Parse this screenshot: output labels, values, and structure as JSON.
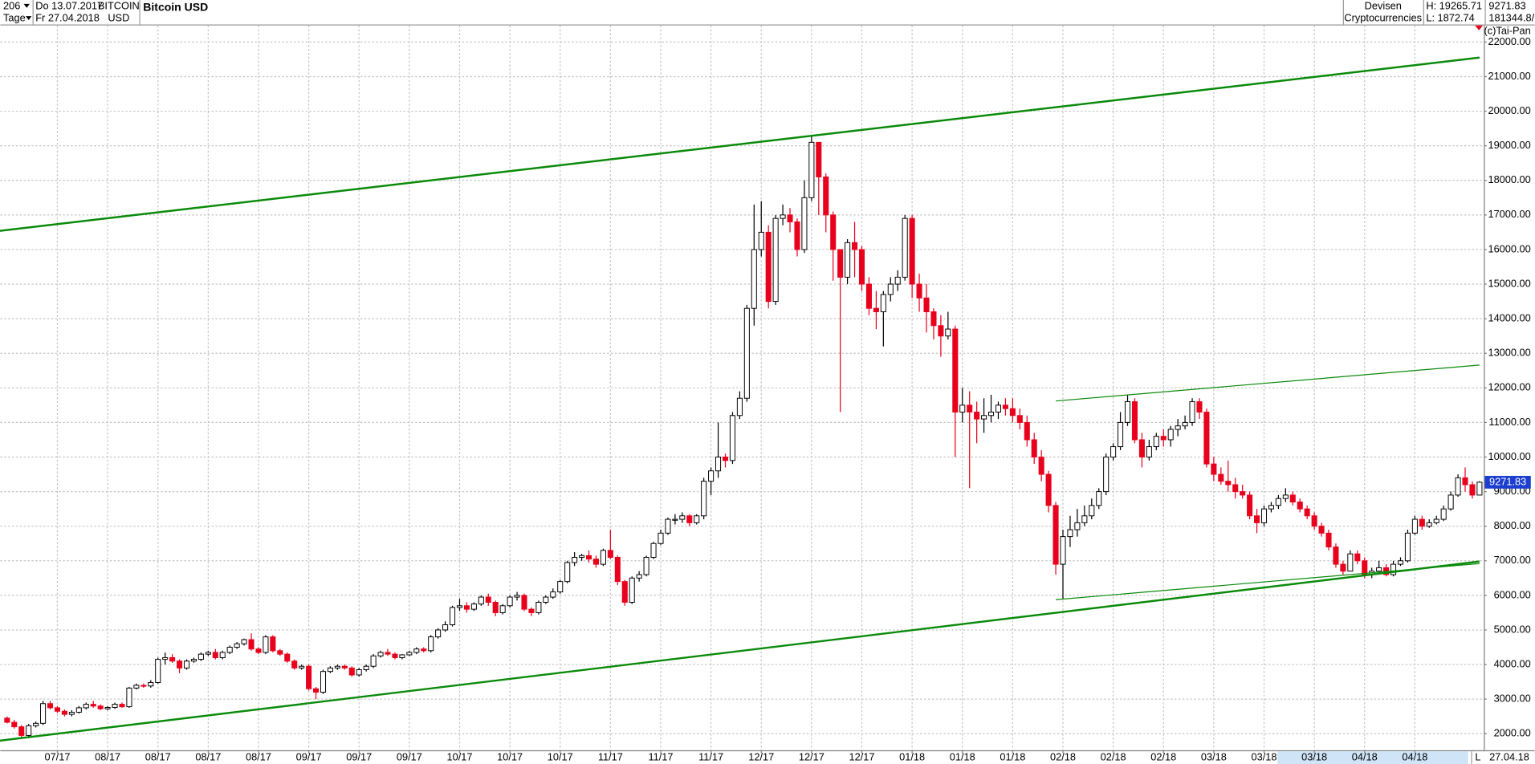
{
  "header": {
    "period": "206",
    "unit": "Tage",
    "from": "Do 13.07.2017",
    "to": "Fr 27.04.2018",
    "symbol": "BITCOIN",
    "currency": "USD",
    "market": "Devisen",
    "group": "Cryptocurrencies",
    "high": "H: 19265.71",
    "low": "L: 1872.74",
    "volume": "181344.8/",
    "copyright": "(c)Tai-Pan",
    "footer_flag": "L",
    "footer_date": "27.04.18"
  },
  "chart_data": {
    "type": "candlestick",
    "title": "Bitcoin USD",
    "up_color": "#ffffff",
    "down_color": "#e8001c",
    "last_color": "#1c3fd0",
    "grid": true,
    "xlim": [
      -0.95,
      205.6
    ],
    "ylim": [
      1520,
      22480
    ],
    "xticks": [
      {
        "value": 7,
        "label": "07/17"
      },
      {
        "value": 14,
        "label": "08/17"
      },
      {
        "value": 21,
        "label": "08/17"
      },
      {
        "value": 28,
        "label": "08/17"
      },
      {
        "value": 35,
        "label": "08/17"
      },
      {
        "value": 42,
        "label": "09/17"
      },
      {
        "value": 49,
        "label": "09/17"
      },
      {
        "value": 56,
        "label": "09/17"
      },
      {
        "value": 63,
        "label": "10/17"
      },
      {
        "value": 70,
        "label": "10/17"
      },
      {
        "value": 77,
        "label": "10/17"
      },
      {
        "value": 84,
        "label": "11/17"
      },
      {
        "value": 91,
        "label": "11/17"
      },
      {
        "value": 98,
        "label": "11/17"
      },
      {
        "value": 105,
        "label": "12/17"
      },
      {
        "value": 112,
        "label": "12/17"
      },
      {
        "value": 119,
        "label": "12/17"
      },
      {
        "value": 126,
        "label": "01/18"
      },
      {
        "value": 133,
        "label": "01/18"
      },
      {
        "value": 140,
        "label": "01/18"
      },
      {
        "value": 147,
        "label": "02/18"
      },
      {
        "value": 154,
        "label": "02/18"
      },
      {
        "value": 161,
        "label": "02/18"
      },
      {
        "value": 168,
        "label": "03/18"
      },
      {
        "value": 175,
        "label": "03/18"
      },
      {
        "value": 182,
        "label": "03/18"
      },
      {
        "value": 189,
        "label": "04/18"
      },
      {
        "value": 196,
        "label": "04/18"
      }
    ],
    "yticks": [
      {
        "value": 2000,
        "label": "2000.00"
      },
      {
        "value": 3000,
        "label": "3000.00"
      },
      {
        "value": 4000,
        "label": "4000.00"
      },
      {
        "value": 5000,
        "label": "5000.00"
      },
      {
        "value": 6000,
        "label": "6000.00"
      },
      {
        "value": 7000,
        "label": "7000.00"
      },
      {
        "value": 8000,
        "label": "8000.00"
      },
      {
        "value": 9000,
        "label": "9000.00"
      },
      {
        "value": 10000,
        "label": "10000.00"
      },
      {
        "value": 11000,
        "label": "11000.00"
      },
      {
        "value": 12000,
        "label": "12000.00"
      },
      {
        "value": 13000,
        "label": "13000.00"
      },
      {
        "value": 14000,
        "label": "14000.00"
      },
      {
        "value": 15000,
        "label": "15000.00"
      },
      {
        "value": 16000,
        "label": "16000.00"
      },
      {
        "value": 17000,
        "label": "17000.00"
      },
      {
        "value": 18000,
        "label": "18000.00"
      },
      {
        "value": 19000,
        "label": "19000.00"
      },
      {
        "value": 20000,
        "label": "20000.00"
      },
      {
        "value": 21000,
        "label": "21000.00"
      },
      {
        "value": 22000,
        "label": "22000.00"
      }
    ],
    "open": [
      2450,
      2330,
      2200,
      1950,
      2230,
      2300,
      2870,
      2750,
      2650,
      2560,
      2620,
      2750,
      2850,
      2800,
      2720,
      2760,
      2850,
      2780,
      3320,
      3400,
      3380,
      3480,
      4150,
      4200,
      4100,
      3900,
      4100,
      4150,
      4300,
      4350,
      4200,
      4350,
      4500,
      4600,
      4720,
      4450,
      4350,
      4800,
      4400,
      4300,
      4100,
      3900,
      3950,
      3300,
      3200,
      3800,
      3900,
      3950,
      3900,
      3700,
      3850,
      3950,
      4250,
      4350,
      4300,
      4200,
      4280,
      4350,
      4450,
      4400,
      4800,
      5000,
      5150,
      5650,
      5700,
      5600,
      5750,
      5950,
      5800,
      5500,
      5700,
      5950,
      6000,
      5600,
      5500,
      5800,
      5950,
      6100,
      6400,
      6950,
      7100,
      7150,
      7050,
      6900,
      7300,
      7100,
      6400,
      5800,
      6500,
      6600,
      7100,
      7500,
      7800,
      8200,
      8200,
      8300,
      8100,
      8300,
      9300,
      9600,
      10000,
      9900,
      11200,
      11700,
      14300,
      16000,
      16500,
      14500,
      16900,
      17000,
      16800,
      16000,
      17500,
      19100,
      18100,
      17000,
      16000,
      15200,
      16200,
      16000,
      15000,
      14300,
      14200,
      14700,
      15000,
      15200,
      16900,
      15000,
      14600,
      14200,
      13800,
      13500,
      13700,
      11300,
      11500,
      11300,
      11100,
      11200,
      11300,
      11500,
      11400,
      11200,
      11000,
      10500,
      10000,
      9500,
      8600,
      6900,
      7700,
      7900,
      8100,
      8300,
      8600,
      9000,
      10000,
      10300,
      11000,
      11600,
      10500,
      10000,
      10300,
      10600,
      10500,
      10800,
      10900,
      11000,
      11600,
      11300,
      9800,
      9500,
      9300,
      9200,
      9000,
      8900,
      8300,
      8100,
      8500,
      8600,
      8800,
      8900,
      8700,
      8500,
      8300,
      8000,
      7800,
      7400,
      6900,
      6700,
      7200,
      7000,
      6600,
      6700,
      6800,
      6600,
      6900,
      7000,
      7800,
      8200,
      8000,
      8100,
      8200,
      8500,
      8900,
      9400,
      9200,
      8900
    ],
    "high": [
      2500,
      2400,
      2250,
      2280,
      2350,
      2950,
      2950,
      2800,
      2700,
      2680,
      2800,
      2900,
      2950,
      2850,
      2800,
      2900,
      2900,
      3350,
      3450,
      3450,
      3550,
      4200,
      4350,
      4300,
      4150,
      4150,
      4200,
      4350,
      4400,
      4450,
      4400,
      4550,
      4650,
      4750,
      4900,
      4500,
      4850,
      4850,
      4450,
      4350,
      4150,
      4000,
      4000,
      3350,
      3850,
      3950,
      4000,
      4000,
      3950,
      3900,
      4000,
      4300,
      4400,
      4450,
      4350,
      4300,
      4400,
      4500,
      4500,
      4850,
      5050,
      5250,
      5700,
      5900,
      5800,
      5800,
      6000,
      6050,
      5850,
      5750,
      6000,
      6100,
      6050,
      5650,
      5850,
      6000,
      6200,
      6450,
      7000,
      7250,
      7200,
      7300,
      7150,
      7350,
      7900,
      7150,
      6450,
      6550,
      6700,
      7150,
      7550,
      7900,
      8250,
      8350,
      8400,
      8350,
      8350,
      9400,
      9700,
      11000,
      10100,
      11300,
      11900,
      14400,
      17300,
      17400,
      16700,
      17000,
      17300,
      17200,
      16900,
      18000,
      19265.71,
      19100,
      18200,
      17100,
      16000,
      16300,
      16800,
      16100,
      15200,
      14800,
      14800,
      15200,
      15400,
      17000,
      17000,
      15300,
      15000,
      14300,
      14100,
      14200,
      13800,
      12000,
      11900,
      11600,
      11700,
      11800,
      11600,
      11700,
      11700,
      11400,
      11200,
      10700,
      10200,
      9600,
      8700,
      7900,
      8300,
      8500,
      8600,
      8800,
      9100,
      10100,
      10400,
      11300,
      11800,
      11700,
      10700,
      10500,
      10700,
      10800,
      10900,
      11100,
      11200,
      11700,
      11700,
      11400,
      10000,
      9700,
      9900,
      9400,
      9200,
      9000,
      8500,
      8600,
      8700,
      8900,
      9100,
      9000,
      8800,
      8600,
      8400,
      8100,
      7900,
      7500,
      7000,
      7300,
      7300,
      7100,
      6800,
      7000,
      6900,
      7000,
      7100,
      7900,
      8300,
      8300,
      8200,
      8300,
      8600,
      9000,
      9500,
      9700,
      9300,
      9300
    ],
    "low": [
      2300,
      2150,
      1900,
      1872.74,
      2180,
      2250,
      2700,
      2600,
      2500,
      2500,
      2580,
      2700,
      2750,
      2680,
      2680,
      2720,
      2750,
      2750,
      3280,
      3330,
      3330,
      3450,
      4000,
      4050,
      3750,
      3850,
      4050,
      4100,
      4250,
      4150,
      4150,
      4300,
      4450,
      4550,
      4400,
      4300,
      4300,
      4350,
      4250,
      4050,
      3850,
      3850,
      3250,
      3000,
      3150,
      3750,
      3850,
      3850,
      3650,
      3650,
      3800,
      3900,
      4200,
      4250,
      4150,
      4150,
      4250,
      4300,
      4350,
      4350,
      4750,
      4950,
      5100,
      5550,
      5500,
      5550,
      5700,
      5700,
      5400,
      5450,
      5650,
      5850,
      5550,
      5400,
      5450,
      5750,
      5900,
      6050,
      6350,
      6850,
      7000,
      6950,
      6800,
      6850,
      7050,
      6300,
      5700,
      5750,
      6400,
      6550,
      7050,
      7450,
      7750,
      8050,
      8100,
      8000,
      8050,
      8200,
      8900,
      9400,
      9700,
      9800,
      11100,
      11600,
      13800,
      15800,
      14300,
      14400,
      16700,
      16500,
      15800,
      15900,
      17400,
      17000,
      16500,
      15100,
      11300,
      15000,
      15200,
      14800,
      14100,
      13700,
      13200,
      14500,
      14800,
      15100,
      14600,
      14200,
      13600,
      13400,
      12900,
      13400,
      10000,
      11000,
      9100,
      10400,
      10700,
      11000,
      11100,
      11200,
      11000,
      10800,
      10300,
      9800,
      9300,
      8400,
      6600,
      5900,
      7400,
      7700,
      8000,
      8200,
      8500,
      8900,
      9900,
      10200,
      10900,
      10400,
      9700,
      9900,
      10200,
      10300,
      10300,
      10600,
      10800,
      10900,
      11100,
      9700,
      9300,
      9200,
      9000,
      8800,
      8800,
      8200,
      7800,
      8000,
      8400,
      8500,
      8700,
      8600,
      8400,
      8200,
      7900,
      7700,
      7300,
      6800,
      6600,
      6700,
      6900,
      6500,
      6500,
      6650,
      6550,
      6550,
      6850,
      6950,
      7750,
      7900,
      7950,
      8050,
      8150,
      8450,
      8850,
      9000,
      8800,
      8900
    ],
    "close": [
      2330,
      2200,
      1950,
      2230,
      2300,
      2870,
      2750,
      2650,
      2560,
      2620,
      2750,
      2850,
      2800,
      2720,
      2760,
      2850,
      2780,
      3320,
      3400,
      3380,
      3480,
      4150,
      4200,
      4100,
      3900,
      4100,
      4150,
      4300,
      4350,
      4200,
      4350,
      4500,
      4600,
      4720,
      4450,
      4350,
      4800,
      4400,
      4300,
      4100,
      3900,
      3950,
      3300,
      3200,
      3800,
      3900,
      3950,
      3900,
      3700,
      3850,
      3950,
      4250,
      4350,
      4300,
      4200,
      4280,
      4350,
      4450,
      4400,
      4800,
      5000,
      5150,
      5650,
      5700,
      5600,
      5750,
      5950,
      5800,
      5500,
      5700,
      5950,
      6000,
      5600,
      5500,
      5800,
      5950,
      6100,
      6400,
      6950,
      7100,
      7150,
      7050,
      6900,
      7300,
      7100,
      6400,
      5800,
      6500,
      6600,
      7100,
      7500,
      7800,
      8200,
      8200,
      8300,
      8100,
      8300,
      9300,
      9600,
      10000,
      9900,
      11200,
      11700,
      14300,
      16000,
      16500,
      14500,
      16900,
      17000,
      16800,
      16000,
      17500,
      19100,
      18100,
      17000,
      16000,
      15200,
      16200,
      16000,
      15000,
      14300,
      14200,
      14700,
      15000,
      15200,
      16900,
      15000,
      14600,
      14200,
      13800,
      13500,
      13700,
      11300,
      11500,
      11300,
      11100,
      11200,
      11300,
      11500,
      11400,
      11200,
      11000,
      10500,
      10000,
      9500,
      8600,
      6900,
      7700,
      7900,
      8100,
      8300,
      8600,
      9000,
      10000,
      10300,
      11000,
      11600,
      10500,
      10000,
      10300,
      10600,
      10500,
      10800,
      10900,
      11000,
      11600,
      11300,
      9800,
      9500,
      9300,
      9200,
      9000,
      8900,
      8300,
      8100,
      8500,
      8600,
      8800,
      8900,
      8700,
      8500,
      8300,
      8000,
      7800,
      7400,
      6900,
      6700,
      7200,
      7000,
      6600,
      6700,
      6800,
      6600,
      6900,
      7000,
      7800,
      8200,
      8000,
      8100,
      8200,
      8500,
      8900,
      9400,
      9200,
      8900,
      9271.83
    ],
    "trendlines": [
      {
        "x": [
          -1,
          205
        ],
        "y": [
          16540,
          21550
        ],
        "color": "#0a8a0a",
        "width": 2
      },
      {
        "x": [
          -1,
          205
        ],
        "y": [
          1800,
          6980
        ],
        "color": "#0a8a0a",
        "width": 2
      },
      {
        "x": [
          146,
          205
        ],
        "y": [
          11620,
          12660
        ],
        "color": "#0a8a0a",
        "width": 1
      },
      {
        "x": [
          146,
          205
        ],
        "y": [
          5875,
          6920
        ],
        "color": "#0a8a0a",
        "width": 1
      }
    ]
  }
}
